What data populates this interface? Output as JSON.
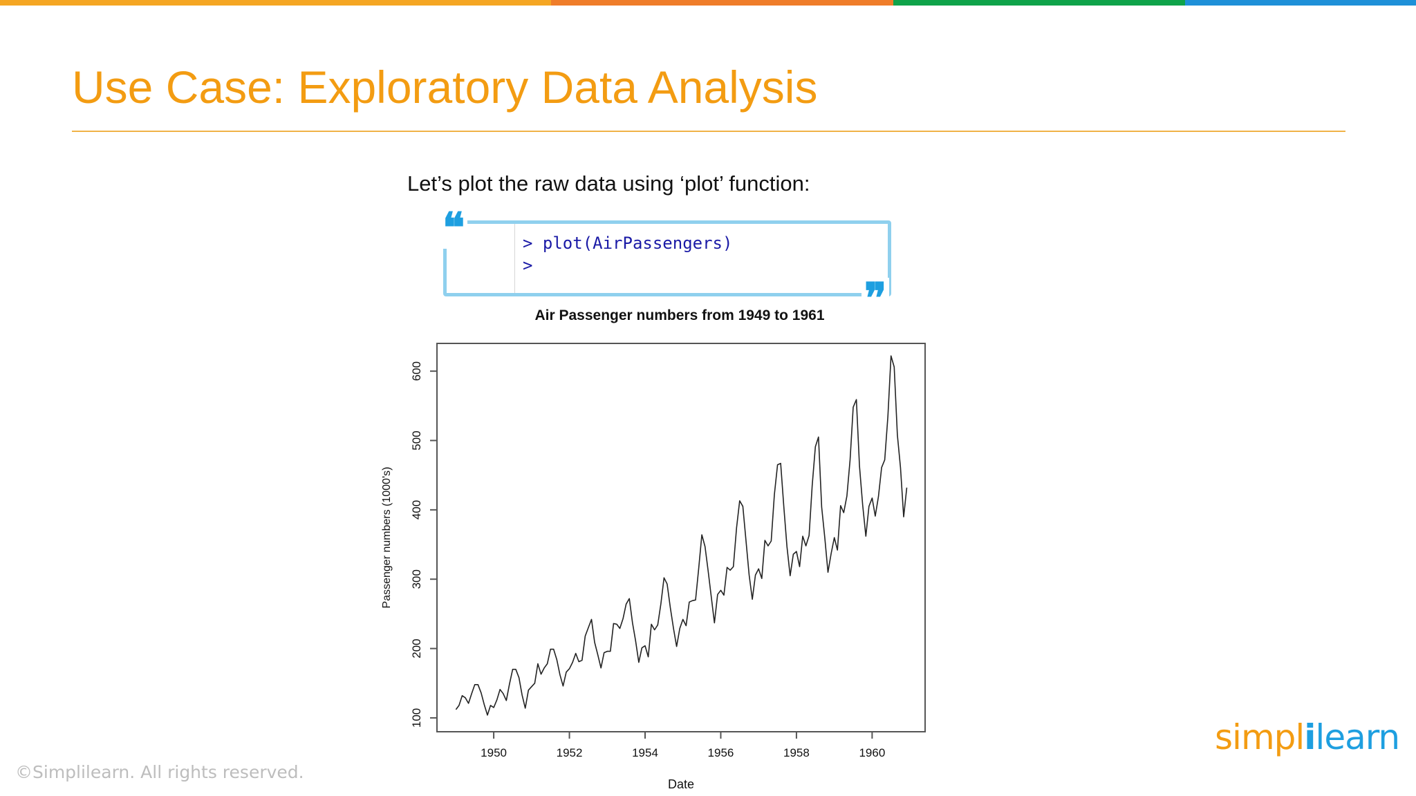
{
  "top_bar": {
    "colors": [
      "#f5a623",
      "#ef7d2a",
      "#0fa34a",
      "#1e90d8"
    ],
    "fractions": [
      0.389,
      0.242,
      0.206,
      0.163
    ]
  },
  "slide": {
    "title": "Use Case: Exploratory Data Analysis",
    "intro": "Let’s plot the raw data using ‘plot’ function:",
    "accent_color": "#f39c12"
  },
  "code": {
    "lines": [
      "> plot(AirPassengers)",
      "> "
    ],
    "open_quote": "❝",
    "close_quote": "❞",
    "border_color": "#8fd0ee"
  },
  "chart_data": {
    "type": "line",
    "title": "Air Passenger numbers from 1949 to 1961",
    "xlabel": "Date",
    "ylabel": "Passenger numbers (1000's)",
    "xlim": [
      1948.5,
      1961.4
    ],
    "ylim": [
      80,
      640
    ],
    "xticks": [
      1950,
      1952,
      1954,
      1956,
      1958,
      1960
    ],
    "yticks": [
      100,
      200,
      300,
      400,
      500,
      600
    ],
    "x_start": 1949.0,
    "x_step": 0.0833333,
    "values": [
      112,
      118,
      132,
      129,
      121,
      135,
      148,
      148,
      136,
      119,
      104,
      118,
      115,
      126,
      141,
      135,
      125,
      149,
      170,
      170,
      158,
      133,
      114,
      140,
      145,
      150,
      178,
      163,
      172,
      178,
      199,
      199,
      184,
      162,
      146,
      166,
      171,
      180,
      193,
      181,
      183,
      218,
      230,
      242,
      209,
      191,
      172,
      194,
      196,
      196,
      236,
      235,
      229,
      243,
      264,
      272,
      237,
      211,
      180,
      201,
      204,
      188,
      235,
      227,
      234,
      264,
      302,
      293,
      259,
      229,
      203,
      229,
      242,
      233,
      267,
      269,
      270,
      315,
      364,
      347,
      312,
      274,
      237,
      278,
      284,
      277,
      317,
      313,
      318,
      374,
      413,
      405,
      355,
      306,
      271,
      306,
      315,
      301,
      356,
      348,
      355,
      422,
      465,
      467,
      404,
      347,
      305,
      336,
      340,
      318,
      362,
      348,
      363,
      435,
      491,
      505,
      404,
      359,
      310,
      337,
      360,
      342,
      406,
      396,
      420,
      472,
      548,
      559,
      463,
      407,
      362,
      405,
      417,
      391,
      419,
      461,
      472,
      535,
      622,
      606,
      508,
      461,
      390,
      432
    ],
    "line_color": "#222222",
    "grid": false
  },
  "footer": {
    "copyright": "©Simplilearn. All rights reserved.",
    "logo_left": "simpl",
    "logo_mark": "i",
    "logo_right": "learn"
  }
}
